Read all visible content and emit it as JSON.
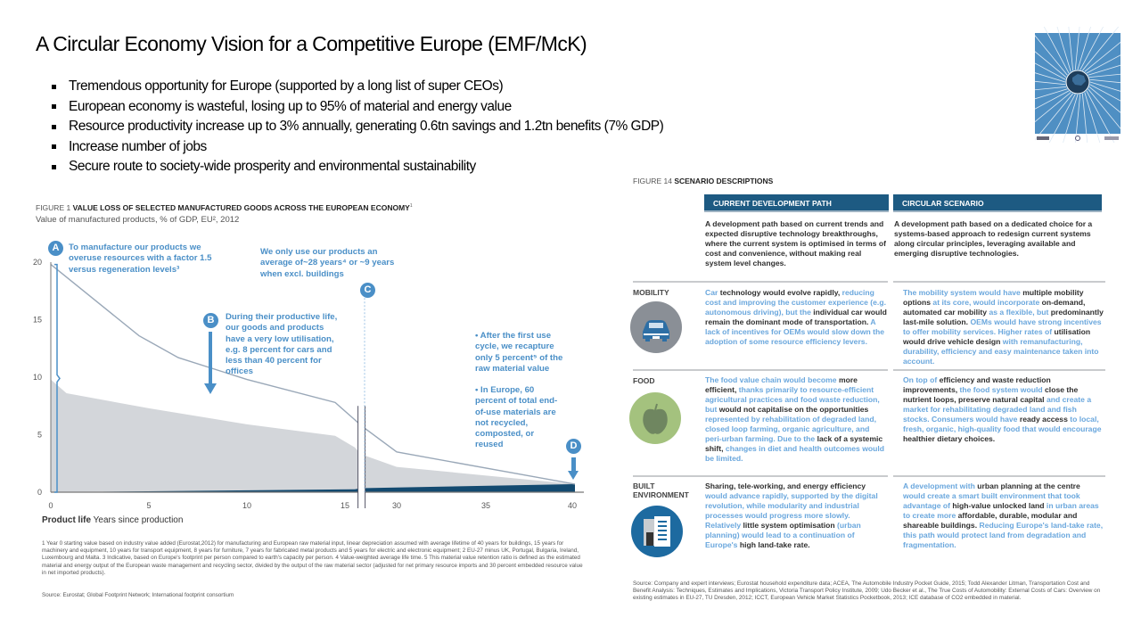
{
  "slide": {
    "title": "A Circular Economy Vision for a Competitive Europe (EMF/McK)",
    "bullets": [
      "Tremendous opportunity for Europe (supported by a long list of super CEOs)",
      "European economy is wasteful, losing up to 95% of material and energy value",
      "Resource productivity increase up to 3% annually, generating 0.6tn savings and 1.2tn benefits (7% GDP)",
      "Increase number of jobs",
      "Secure route to society-wide prosperity and environmental sustainability"
    ]
  },
  "colors": {
    "accent_blue": "#4a8fc7",
    "header_blue": "#1d5a82",
    "highlight_text": "#6aa7dd",
    "area_gray": "#d3d6da",
    "dark_area": "#134a70"
  },
  "figure1": {
    "label": "FIGURE 1",
    "title": "VALUE LOSS OF SELECTED MANUFACTURED GOODS ACROSS THE EUROPEAN ECONOMY",
    "title_sup": "1",
    "subtitle": "Value of manufactured products, % of GDP, EU², 2012",
    "annotations": {
      "A_letter": "A",
      "A_text": "To manufacture our products we overuse resources with a factor 1.5 versus regeneration levels³",
      "B_letter": "B",
      "B_text": "During their productive life, our goods and products have a very low utilisation, e.g. 8 percent for cars and less than 40 percent for offices",
      "C_letter": "C",
      "C_text": "We only use our products an average of~28 years⁴ or ~9 years when excl. buildings",
      "D_letter": "D",
      "D_text1": "• After the first use cycle, we recapture only 5 percent⁵ of the raw material value",
      "D_text2": "• In Europe, 60 percent of total end-of-use materials are not recycled, composted, or reused"
    },
    "xlabel_bold": "Product life",
    "xlabel": "Years since production",
    "footnote": "1 Year 0 starting value based on industry value added (Eurostat,2012) for manufacturing and European raw material input, linear depreciation assumed with average lifetime of 40 years for buildings, 15 years for machinery and equipment, 10 years for transport equipment, 8 years for furniture, 7 years for fabricated metal products and 5 years for electric and electronic equipment; 2 EU-27 minus UK, Portugal, Bulgaria, Ireland, Luxembourg and Malta. 3 Indicative, based on Europe's footprint per person compared to earth's capacity per person. 4 Value-weighted average life time. 5 This material value retention ratio is defined as the estimated material and energy output of the European waste management and recycling sector, divided by the output of the raw material sector (adjusted for net primary resource imports and 30 percent embedded resource value in net imported products).",
    "source": "Source: Eurostat; Global Footprint Network; International footprint consortium"
  },
  "chart_data": {
    "type": "area",
    "title": "VALUE LOSS OF SELECTED MANUFACTURED GOODS ACROSS THE EUROPEAN ECONOMY",
    "xlabel": "Product life Years since production",
    "ylabel": "Value of manufactured products, % of GDP, EU², 2012",
    "xticks": [
      0,
      5,
      10,
      15,
      30,
      35,
      40
    ],
    "yticks": [
      0,
      5,
      10,
      15,
      20
    ],
    "ylim": [
      0,
      20
    ],
    "x_axis_break": [
      15.8,
      28
    ],
    "grid": false,
    "series": [
      {
        "kind": "line",
        "x": [
          0,
          4.5,
          6.5,
          10,
          14.5,
          15.5,
          28,
          30,
          40
        ],
        "y": [
          19.8,
          13.6,
          11.7,
          9.8,
          7.8,
          6.3,
          5.8,
          3.5,
          0.7
        ]
      },
      {
        "kind": "area",
        "x": [
          0,
          0.8,
          5,
          10,
          14.5,
          15.5,
          28,
          30,
          40
        ],
        "y": [
          9.8,
          8.6,
          7.3,
          5.9,
          4.9,
          3.9,
          3.3,
          2.2,
          0.7
        ]
      },
      {
        "kind": "area-dark",
        "x": [
          0,
          15.5,
          28,
          40
        ],
        "y": [
          0,
          0.25,
          0.35,
          0.7
        ]
      }
    ]
  },
  "figure14": {
    "label": "FIGURE 14",
    "title": "SCENARIO DESCRIPTIONS",
    "col1": "CURRENT DEVELOPMENT PATH",
    "col2": "CIRCULAR SCENARIO",
    "intro1": [
      [
        "A development path based on current trends and expected disruptive technology breakthroughs, where the current system is optimised in terms of cost and convenience, without making real system level changes.",
        0
      ]
    ],
    "intro2": [
      [
        "A development path based on a dedicated choice for a systems-based approach to redesign current systems along circular principles, leveraging available and emerging disruptive technologies.",
        0
      ]
    ],
    "rows": [
      {
        "label": "MOBILITY",
        "icon": "car-icon",
        "c1": [
          [
            "Car",
            1
          ],
          [
            " technology would evolve rapidly, ",
            0
          ],
          [
            "reducing cost and improving the customer experience (e.g. autonomous driving), but the ",
            1
          ],
          [
            "individual car would remain the dominant mode of transportation.",
            0
          ],
          [
            " A lack of incentives for OEMs would slow down the adoption of some resource efficiency levers.",
            1
          ]
        ],
        "c2": [
          [
            "The mobility system would have ",
            1
          ],
          [
            "multiple mobility options",
            0
          ],
          [
            " at its core, would incorporate ",
            1
          ],
          [
            "on-demand, automated car mobility",
            0
          ],
          [
            " as a flexible, but ",
            1
          ],
          [
            "predominantly last-mile solution.",
            0
          ],
          [
            " OEMs would have strong incentives to offer mobility services. Higher rates of ",
            1
          ],
          [
            "utilisation would drive vehicle design",
            0
          ],
          [
            " with remanufacturing, durability, efficiency and easy maintenance taken into account.",
            1
          ]
        ]
      },
      {
        "label": "FOOD",
        "icon": "apple-icon",
        "c1": [
          [
            "The food value chain would become ",
            1
          ],
          [
            "more efficient,",
            0
          ],
          [
            " thanks primarily to resource-efficient agricultural practices and food waste reduction, but ",
            1
          ],
          [
            "would not capitalise on the opportunities",
            0
          ],
          [
            " represented by rehabilitation of degraded land, closed loop farming, organic agriculture, and peri-urban farming. Due to the ",
            1
          ],
          [
            "lack of a systemic shift,",
            0
          ],
          [
            " changes in diet and health outcomes would be limited.",
            1
          ]
        ],
        "c2": [
          [
            "On top of ",
            1
          ],
          [
            "efficiency and waste reduction improvements,",
            0
          ],
          [
            " the food system would ",
            1
          ],
          [
            "close the nutrient loops, preserve natural capital",
            0
          ],
          [
            " and create a market for rehabilitating degraded land and fish stocks. Consumers would have ",
            1
          ],
          [
            "ready access",
            0
          ],
          [
            " to local, fresh, organic, high-quality food that would encourage ",
            1
          ],
          [
            "healthier dietary choices.",
            0
          ]
        ]
      },
      {
        "label": "BUILT ENVIRONMENT",
        "icon": "building-icon",
        "c1": [
          [
            "Sharing, tele-working, and energy efficiency",
            0
          ],
          [
            " would advance rapidly, supported by the digital revolution, while modularity and industrial processes would progress more slowly. Relatively ",
            1
          ],
          [
            "little system optimisation",
            0
          ],
          [
            " (urban planning) would lead to a continuation of Europe's ",
            1
          ],
          [
            "high land-take rate.",
            0
          ]
        ],
        "c2": [
          [
            "A development with ",
            1
          ],
          [
            "urban planning at the centre",
            0
          ],
          [
            " would create a smart built environment that took advantage of ",
            1
          ],
          [
            "high-value unlocked land",
            0
          ],
          [
            " in urban areas to create more ",
            1
          ],
          [
            "affordable, durable, modular and shareable buildings.",
            0
          ],
          [
            " Reducing Europe's land-take rate, this path would protect land from degradation and fragmentation.",
            1
          ]
        ]
      }
    ],
    "source": "Source: Company and expert interviews; Eurostat household expenditure data; ACEA, The Automobile Industry Pocket Guide, 2015; Todd Alexander Litman, Transportation Cost and Benefit Analysis: Techniques, Estimates and Implications, Victoria Transport Policy Institute, 2009; Udo Becker et al., The True Costs of Automobility: External Costs of Cars: Overview on existing estimates in EU-27, TU Dresden, 2012; ICCT, European Vehicle Market Statistics Pocketbook, 2013; ICE database of CO2 embedded in material."
  }
}
